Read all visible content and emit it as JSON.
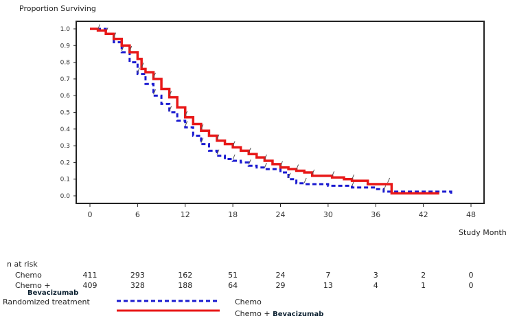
{
  "chart_data": {
    "type": "line",
    "ylabel": "Proportion Surviving",
    "xlabel": "Study Month",
    "xlim": [
      0,
      48
    ],
    "ylim": [
      0,
      1.0
    ],
    "xticks": [
      "0",
      "6",
      "12",
      "18",
      "24",
      "30",
      "36",
      "42",
      "48"
    ],
    "yticks": [
      "0.0",
      "0.1",
      "0.2",
      "0.3",
      "0.4",
      "0.5",
      "0.6",
      "0.7",
      "0.8",
      "0.9",
      "1.0"
    ],
    "grid": false,
    "series": [
      {
        "name": "Chemo",
        "color": "#1a1ad0",
        "style": "dashed",
        "x": [
          0,
          2,
          3,
          4,
          5,
          6,
          7,
          8,
          9,
          10,
          11,
          12,
          13,
          14,
          15,
          16,
          17,
          18,
          19,
          20,
          21,
          22,
          24,
          25,
          26,
          27,
          30,
          33,
          36,
          37,
          44,
          45.5
        ],
        "y": [
          1.0,
          0.97,
          0.92,
          0.86,
          0.8,
          0.73,
          0.67,
          0.6,
          0.55,
          0.5,
          0.45,
          0.41,
          0.36,
          0.31,
          0.27,
          0.24,
          0.22,
          0.21,
          0.2,
          0.18,
          0.17,
          0.16,
          0.14,
          0.1,
          0.075,
          0.07,
          0.06,
          0.05,
          0.04,
          0.025,
          0.025,
          0.01
        ]
      },
      {
        "name": "Chemo + Bevacizumab",
        "color": "#e81818",
        "style": "solid",
        "x": [
          0,
          1,
          2,
          3,
          4,
          5,
          6,
          6.5,
          7,
          8,
          9,
          10,
          11,
          12,
          13,
          14,
          15,
          16,
          17,
          18,
          19,
          20,
          21,
          22,
          23,
          24,
          25,
          26,
          27,
          28,
          30,
          30.5,
          32,
          33,
          35,
          37.5,
          38,
          44
        ],
        "y": [
          1.0,
          0.99,
          0.97,
          0.94,
          0.9,
          0.86,
          0.82,
          0.76,
          0.74,
          0.7,
          0.64,
          0.59,
          0.53,
          0.47,
          0.43,
          0.39,
          0.36,
          0.33,
          0.31,
          0.29,
          0.27,
          0.25,
          0.23,
          0.21,
          0.19,
          0.17,
          0.16,
          0.15,
          0.14,
          0.12,
          0.12,
          0.11,
          0.1,
          0.09,
          0.07,
          0.07,
          0.015,
          0.015
        ]
      }
    ]
  },
  "risk_table": {
    "title": "n at risk",
    "rows": [
      {
        "label": "Chemo",
        "label2": "",
        "values": [
          "411",
          "293",
          "162",
          "51",
          "24",
          "7",
          "3",
          "2",
          "0"
        ]
      },
      {
        "label": "Chemo +",
        "label2": "Bevacizumab",
        "values": [
          "409",
          "328",
          "188",
          "64",
          "29",
          "13",
          "4",
          "1",
          "0"
        ]
      }
    ]
  },
  "legend": {
    "title": "Randomized treatment",
    "items": [
      {
        "label": "Chemo",
        "bold": ""
      },
      {
        "label": "Chemo + ",
        "bold": "Bevacizumab"
      }
    ]
  }
}
